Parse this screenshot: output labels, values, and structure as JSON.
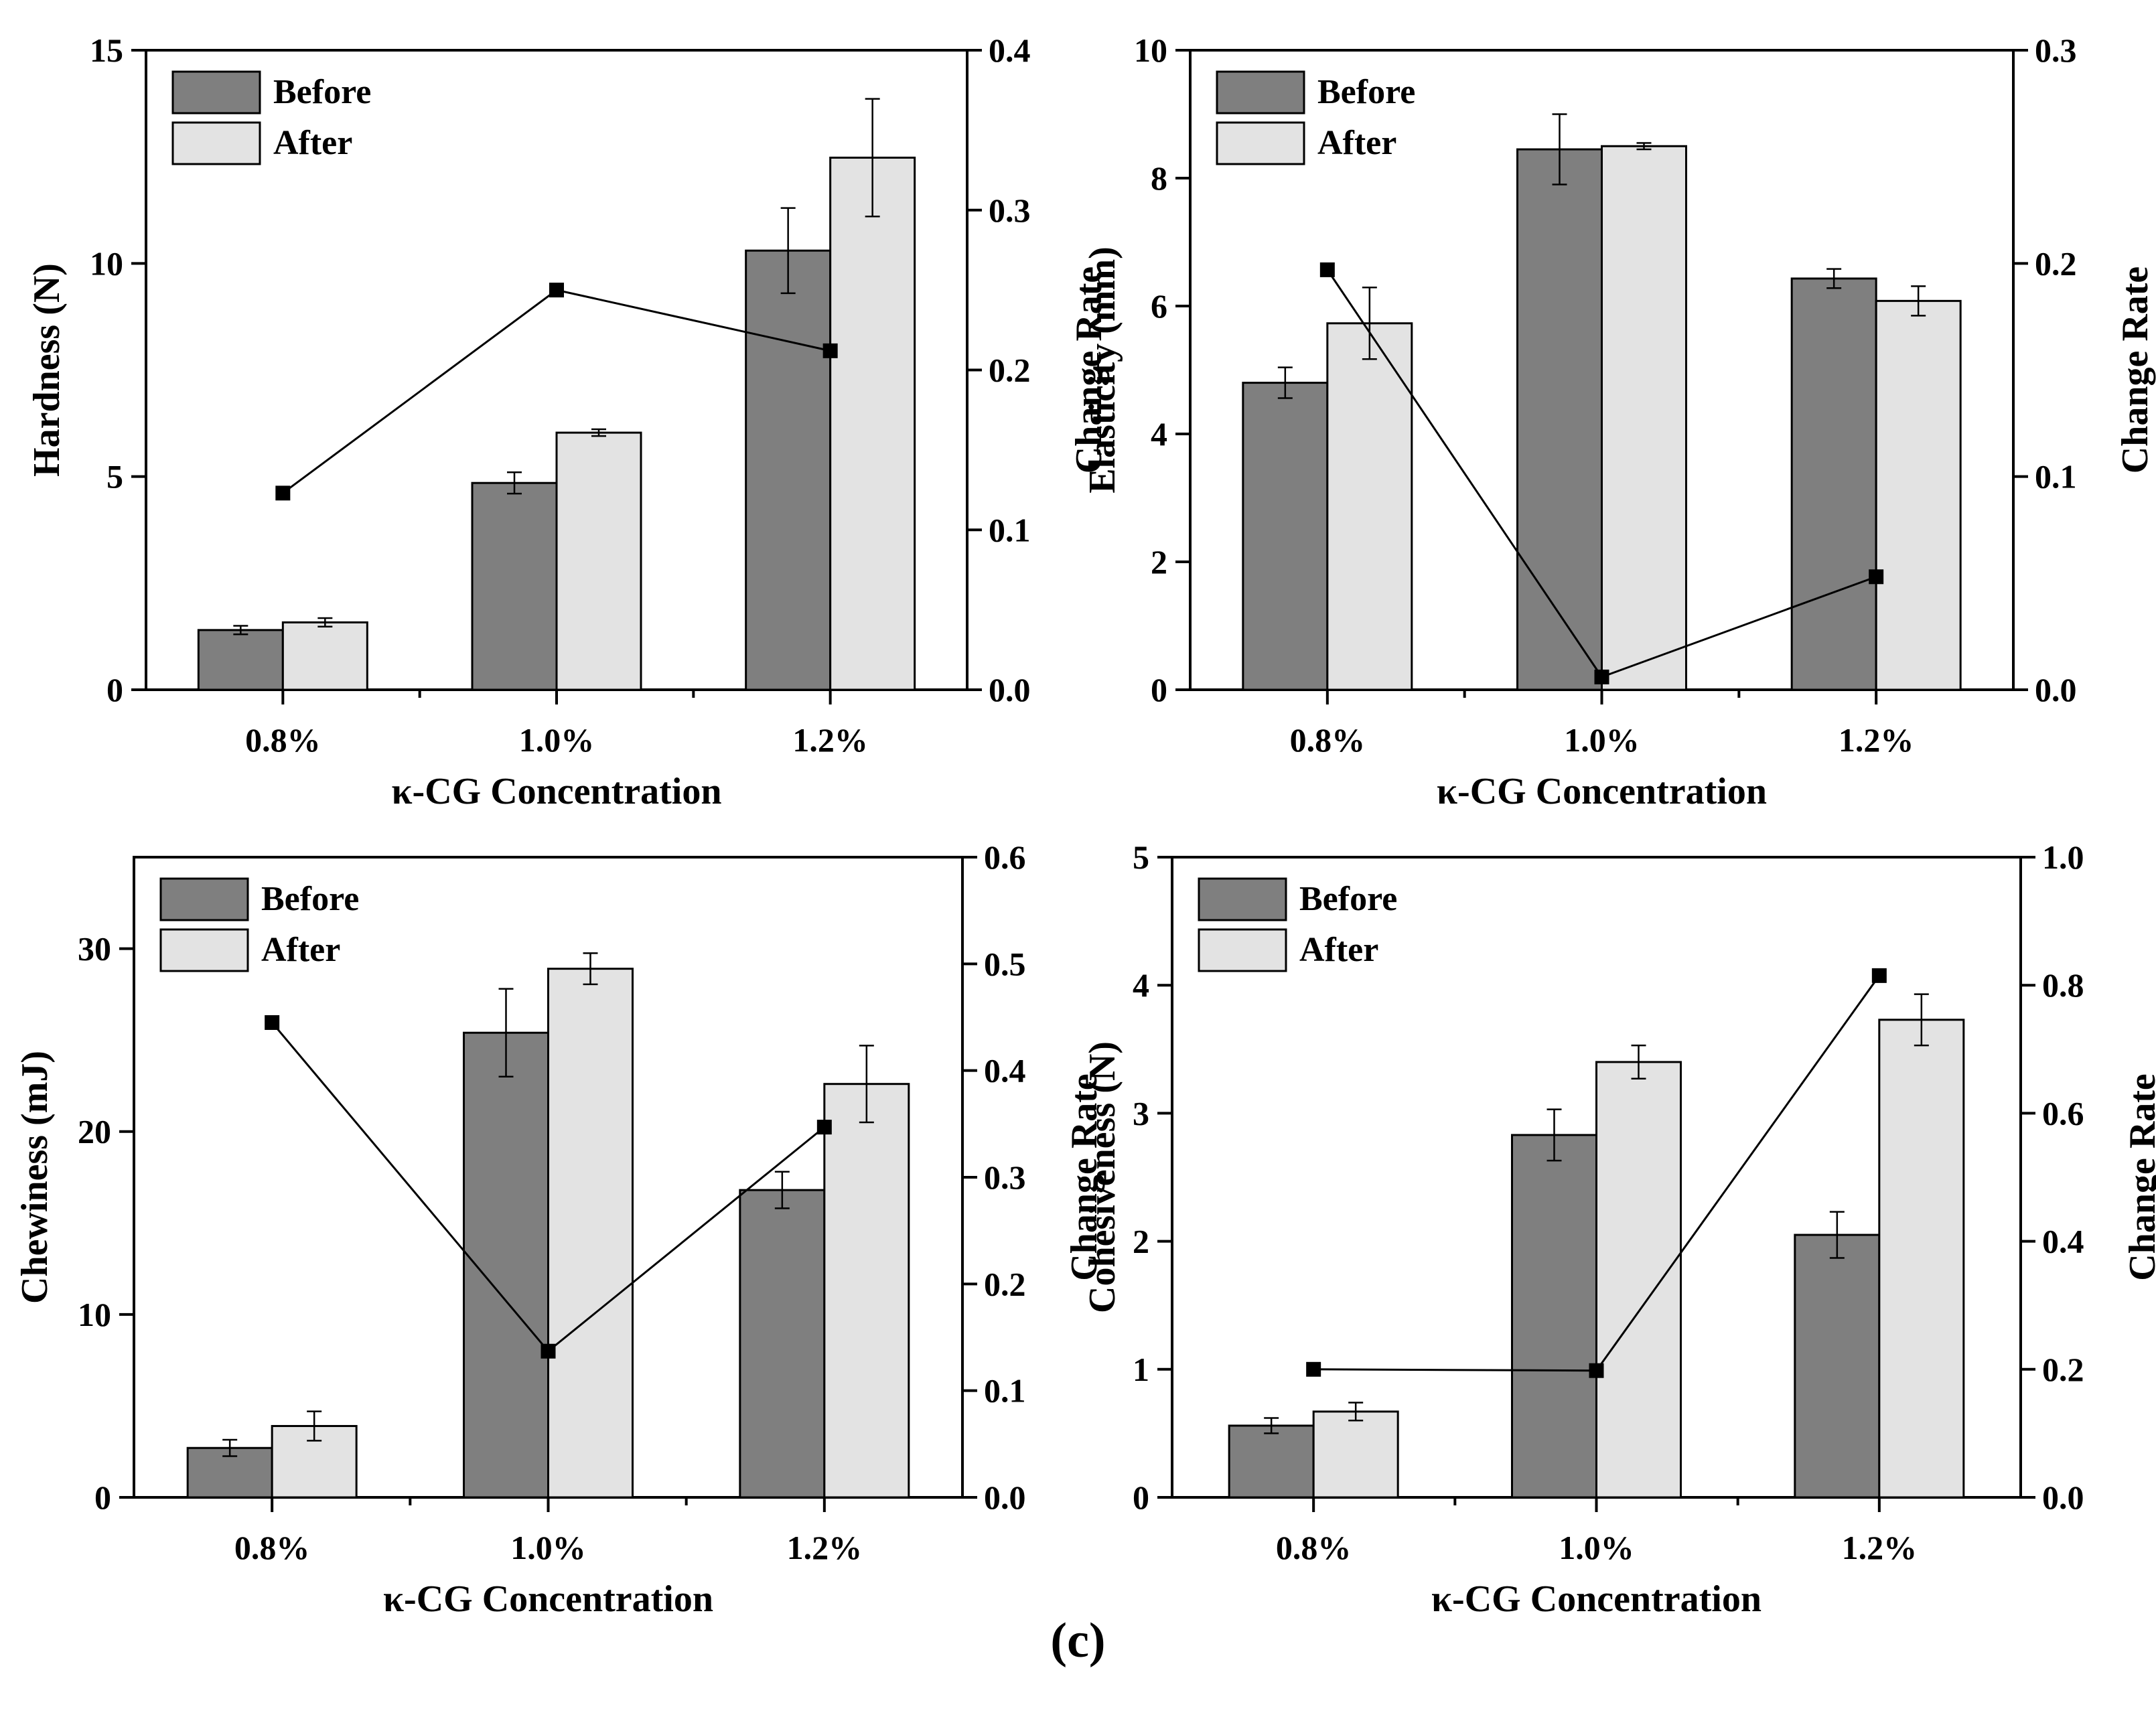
{
  "figure": {
    "caption": "(c)"
  },
  "chart_data": [
    {
      "type": "bar",
      "id": "hardness",
      "categories": [
        "0.8%",
        "1.0%",
        "1.2%"
      ],
      "xlabel": "κ-CG Concentration",
      "ylabel": "Hardness (N)",
      "y2label": "Change Rate",
      "ylim": [
        0,
        15
      ],
      "yticks": [
        0,
        5,
        10,
        15
      ],
      "y2lim": [
        0,
        0.4
      ],
      "y2ticks": [
        0.0,
        0.1,
        0.2,
        0.3,
        0.4
      ],
      "series": [
        {
          "name": "Before",
          "color": "#7f7f7f",
          "values": [
            1.4,
            4.85,
            10.3
          ],
          "errors": [
            0.1,
            0.25,
            1.0
          ]
        },
        {
          "name": "After",
          "color": "#e3e3e3",
          "values": [
            1.58,
            6.03,
            12.48
          ],
          "errors": [
            0.1,
            0.08,
            1.38
          ]
        }
      ],
      "line": {
        "name": "Change Rate",
        "axis": "right",
        "values": [
          0.123,
          0.25,
          0.212
        ]
      },
      "legend": "top-left"
    },
    {
      "type": "bar",
      "id": "elasticity",
      "categories": [
        "0.8%",
        "1.0%",
        "1.2%"
      ],
      "xlabel": "κ-CG Concentration",
      "ylabel": "Elasticity (mm)",
      "y2label": "Change Rate",
      "ylim": [
        0,
        10
      ],
      "yticks": [
        0,
        2,
        4,
        6,
        8,
        10
      ],
      "y2lim": [
        0,
        0.3
      ],
      "y2ticks": [
        0.0,
        0.1,
        0.2,
        0.3
      ],
      "series": [
        {
          "name": "Before",
          "color": "#7f7f7f",
          "values": [
            4.8,
            8.45,
            6.43
          ],
          "errors": [
            0.24,
            0.55,
            0.15
          ]
        },
        {
          "name": "After",
          "color": "#e3e3e3",
          "values": [
            5.73,
            8.5,
            6.08
          ],
          "errors": [
            0.56,
            0.05,
            0.23
          ]
        }
      ],
      "line": {
        "name": "Change Rate",
        "axis": "right",
        "values": [
          0.197,
          0.006,
          0.053
        ]
      },
      "legend": "top-left"
    },
    {
      "type": "bar",
      "id": "chewiness",
      "categories": [
        "0.8%",
        "1.0%",
        "1.2%"
      ],
      "xlabel": "κ-CG Concentration",
      "ylabel": "Chewiness (mJ)",
      "y2label": "Change Rate",
      "ylim": [
        0,
        35
      ],
      "yticks": [
        0,
        10,
        20,
        30
      ],
      "y2lim": [
        0,
        0.6
      ],
      "y2ticks": [
        0.0,
        0.1,
        0.2,
        0.3,
        0.4,
        0.5,
        0.6
      ],
      "series": [
        {
          "name": "Before",
          "color": "#7f7f7f",
          "values": [
            2.7,
            25.4,
            16.8
          ],
          "errors": [
            0.45,
            2.4,
            1.0
          ]
        },
        {
          "name": "After",
          "color": "#e3e3e3",
          "values": [
            3.9,
            28.9,
            22.6
          ],
          "errors": [
            0.8,
            0.85,
            2.1
          ]
        }
      ],
      "line": {
        "name": "Change Rate",
        "axis": "right",
        "values": [
          0.445,
          0.137,
          0.347
        ]
      },
      "legend": "top-left"
    },
    {
      "type": "bar",
      "id": "cohesiveness",
      "categories": [
        "0.8%",
        "1.0%",
        "1.2%"
      ],
      "xlabel": "κ-CG Concentration",
      "ylabel": "Cohesiveness (N)",
      "y2label": "Change Rate",
      "ylim": [
        0,
        5
      ],
      "yticks": [
        0,
        1,
        2,
        3,
        4,
        5
      ],
      "y2lim": [
        0,
        1.0
      ],
      "y2ticks": [
        0.0,
        0.2,
        0.4,
        0.6,
        0.8,
        1.0
      ],
      "series": [
        {
          "name": "Before",
          "color": "#7f7f7f",
          "values": [
            0.56,
            2.83,
            2.05
          ],
          "errors": [
            0.06,
            0.2,
            0.18
          ]
        },
        {
          "name": "After",
          "color": "#e3e3e3",
          "values": [
            0.67,
            3.4,
            3.73
          ],
          "errors": [
            0.07,
            0.13,
            0.2
          ]
        }
      ],
      "line": {
        "name": "Change Rate",
        "axis": "right",
        "values": [
          0.2,
          0.198,
          0.815
        ]
      },
      "legend": "top-left"
    }
  ]
}
